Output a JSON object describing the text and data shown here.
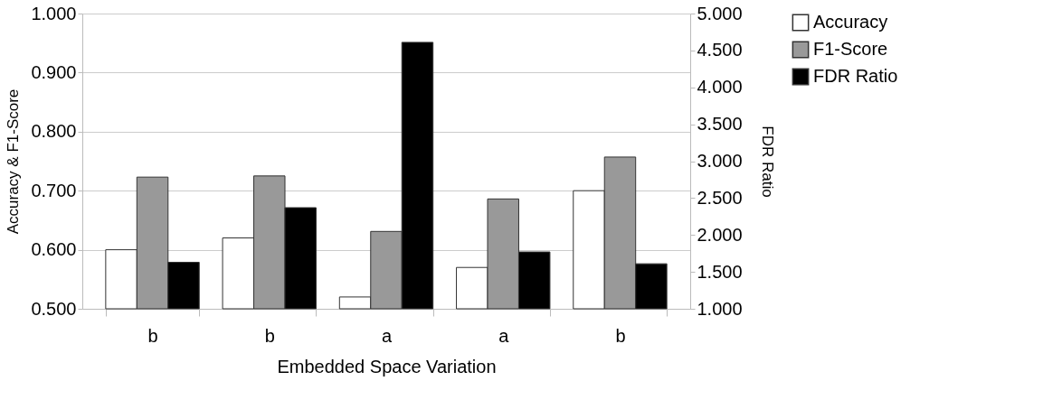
{
  "chart_data": {
    "type": "bar",
    "xlabel": "Embedded Space Variation",
    "ylabel": "Accuracy & F1-Score",
    "y2label": "FDR Ratio",
    "categories": [
      "b",
      "b",
      "a",
      "a",
      "b"
    ],
    "series": [
      {
        "name": "Accuracy",
        "color": "#ffffff",
        "values": [
          0.6,
          0.62,
          0.52,
          0.57,
          0.7
        ]
      },
      {
        "name": "F1-Score",
        "color": "#999999",
        "values": [
          0.723,
          0.725,
          0.631,
          0.686,
          0.757
        ]
      },
      {
        "name": "FDR Ratio",
        "color": "#000000",
        "axis": "y2",
        "values": [
          1.63,
          2.37,
          4.61,
          1.77,
          1.61
        ]
      }
    ],
    "ylim": [
      0.5,
      1.0
    ],
    "yticks": [
      {
        "value": 0.5,
        "label": "0.500"
      },
      {
        "value": 0.6,
        "label": "0.600"
      },
      {
        "value": 0.7,
        "label": "0.700"
      },
      {
        "value": 0.8,
        "label": "0.800"
      },
      {
        "value": 0.9,
        "label": "0.900"
      },
      {
        "value": 1.0,
        "label": "1.000"
      }
    ],
    "y2lim": [
      1.0,
      5.0
    ],
    "y2ticks": [
      {
        "value": 1.0,
        "label": "1.000"
      },
      {
        "value": 1.5,
        "label": "1.500"
      },
      {
        "value": 2.0,
        "label": "2.000"
      },
      {
        "value": 2.5,
        "label": "2.500"
      },
      {
        "value": 3.0,
        "label": "3.000"
      },
      {
        "value": 3.5,
        "label": "3.500"
      },
      {
        "value": 4.0,
        "label": "4.000"
      },
      {
        "value": 4.5,
        "label": "4.500"
      },
      {
        "value": 5.0,
        "label": "5.000"
      }
    ],
    "grid": "y",
    "legend": "right"
  }
}
